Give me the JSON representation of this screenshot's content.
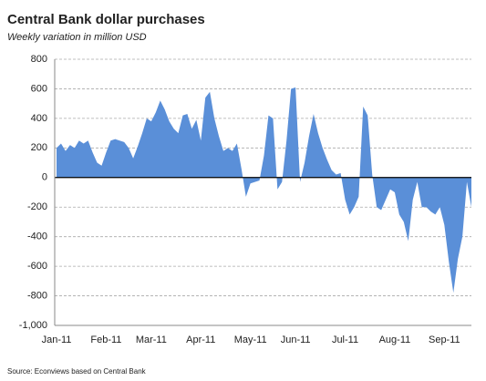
{
  "chart_data": {
    "type": "area",
    "title": "Central Bank dollar purchases",
    "subtitle": "Weekly variation in million USD",
    "source": "Source: Econviews based on Central Bank",
    "color": "#5a8fd8",
    "grid": true,
    "categories": [
      "Jan-11",
      null,
      null,
      null,
      null,
      null,
      null,
      null,
      null,
      null,
      null,
      "Feb-11",
      null,
      null,
      null,
      null,
      null,
      null,
      null,
      null,
      null,
      "Mar-11",
      null,
      null,
      null,
      null,
      null,
      null,
      null,
      null,
      null,
      null,
      "Apr-11",
      null,
      null,
      null,
      null,
      null,
      null,
      null,
      null,
      null,
      null,
      "May-11",
      null,
      null,
      null,
      null,
      null,
      null,
      null,
      null,
      null,
      "Jun-11",
      null,
      null,
      null,
      null,
      null,
      null,
      null,
      null,
      null,
      null,
      "Jul-11",
      null,
      null,
      null,
      null,
      null,
      null,
      null,
      null,
      null,
      null,
      "Aug-11",
      null,
      null,
      null,
      null,
      null,
      null,
      null,
      null,
      null,
      null,
      "Sep-11",
      null,
      null,
      null,
      null,
      null,
      null
    ],
    "values": [
      200,
      230,
      180,
      220,
      200,
      250,
      230,
      250,
      170,
      100,
      80,
      170,
      250,
      260,
      250,
      240,
      200,
      130,
      210,
      300,
      400,
      380,
      440,
      520,
      460,
      380,
      330,
      300,
      420,
      430,
      330,
      390,
      250,
      540,
      580,
      400,
      280,
      180,
      200,
      180,
      230,
      60,
      -130,
      -40,
      -30,
      -20,
      150,
      420,
      400,
      -80,
      -30,
      250,
      600,
      610,
      -30,
      100,
      280,
      430,
      300,
      200,
      120,
      50,
      20,
      30,
      -150,
      -250,
      -200,
      -130,
      480,
      420,
      20,
      -200,
      -220,
      -150,
      -80,
      -100,
      -250,
      -300,
      -430,
      -150,
      -30,
      -200,
      -200,
      -230,
      -250,
      -200,
      -320,
      -570,
      -780,
      -550,
      -400,
      -30,
      -200
    ],
    "ylim": [
      -1000,
      800
    ],
    "yticks": [
      800,
      600,
      400,
      200,
      0,
      -200,
      -400,
      -600,
      -800,
      {
        "value": -1000,
        "label": "-1,000"
      }
    ]
  }
}
